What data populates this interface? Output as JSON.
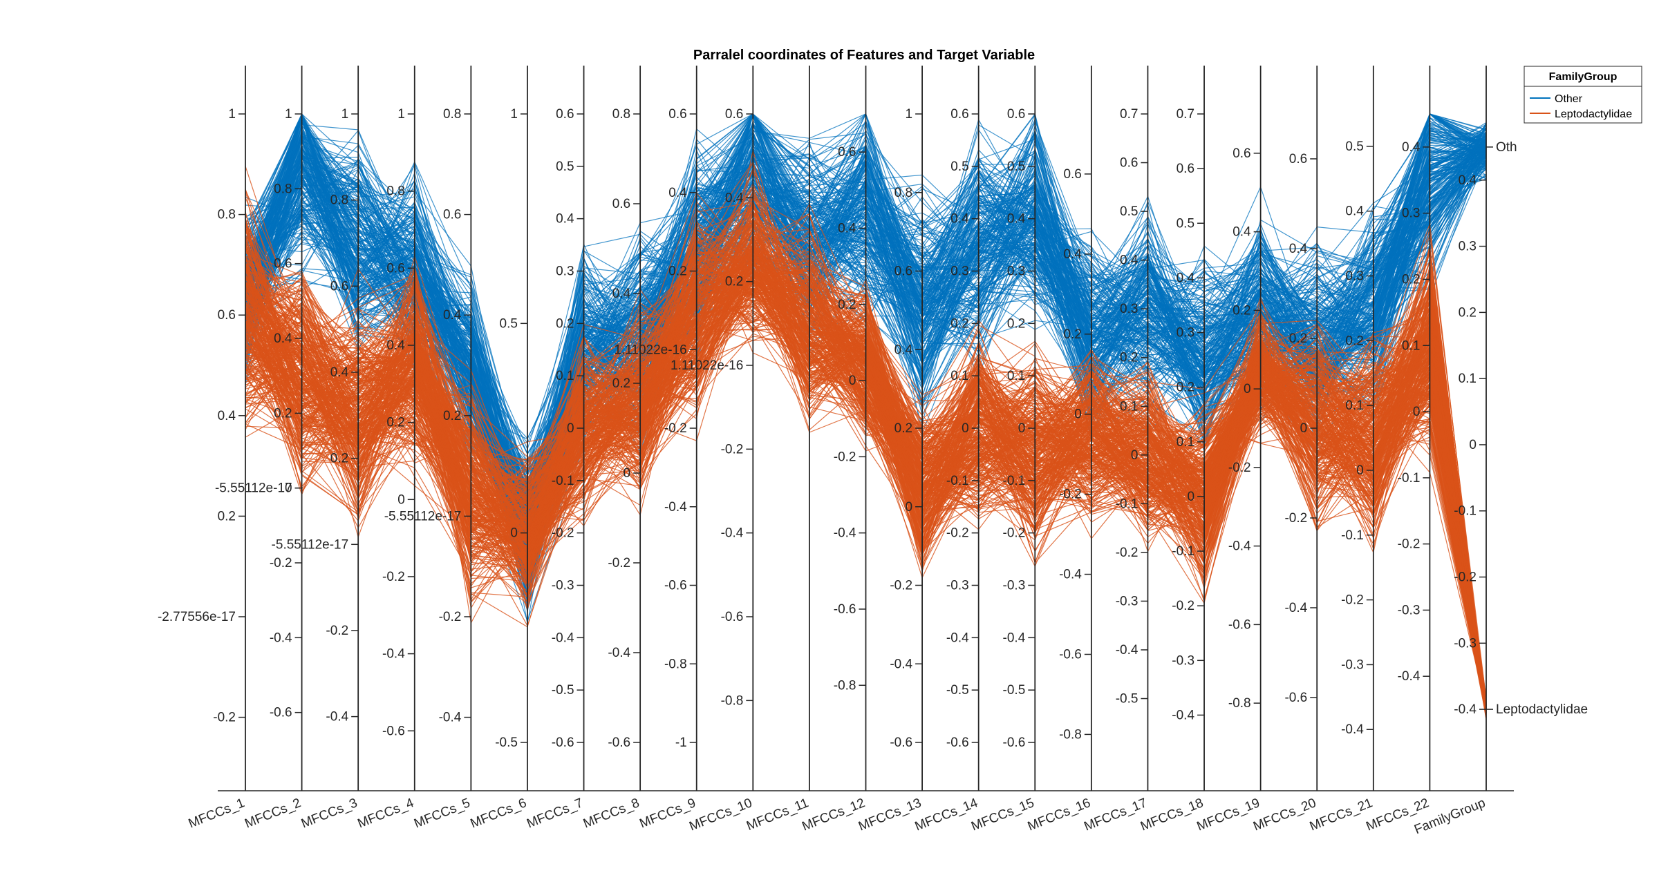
{
  "chart_data": {
    "type": "parallel-coordinates",
    "title": "Parralel coordinates of Features and Target Variable",
    "legend": {
      "title": "FamilyGroup",
      "position": "top-right",
      "entries": [
        {
          "name": "Other",
          "color": "#0072BD"
        },
        {
          "name": "Leptodactylidae",
          "color": "#D95319"
        }
      ]
    },
    "axes": [
      {
        "name": "MFCCs_1",
        "min": -0.25,
        "max": 1.0,
        "ticks": [
          1,
          0.8,
          0.6,
          0.4,
          0.2,
          -2.77556e-17,
          -0.2
        ],
        "tick_labels": [
          "1",
          "0.8",
          "0.6",
          "0.4",
          "0.2",
          "-2.77556e-17",
          "-0.2"
        ]
      },
      {
        "name": "MFCCs_2",
        "min": -0.68,
        "max": 1.0,
        "ticks": [
          1,
          0.8,
          0.6,
          0.4,
          0.2,
          0,
          -5.55112e-17,
          -0.2,
          -0.4,
          -0.6
        ],
        "tick_labels": [
          "1",
          "0.8",
          "0.6",
          "0.4",
          "0.2",
          "0",
          "-5.55112e-17",
          "-0.2",
          "-0.4",
          "-0.6"
        ]
      },
      {
        "name": "MFCCs_3",
        "min": -0.46,
        "max": 1.0,
        "ticks": [
          1,
          0.8,
          0.6,
          0.4,
          0.2,
          -5.55112e-17,
          -0.2,
          -0.4
        ],
        "tick_labels": [
          "1",
          "0.8",
          "0.6",
          "0.4",
          "0.2",
          "-5.55112e-17",
          "-0.2",
          "-0.4"
        ]
      },
      {
        "name": "MFCCs_4",
        "min": -0.63,
        "max": 1.0,
        "ticks": [
          1,
          0.8,
          0.6,
          0.4,
          0.2,
          0,
          -0.2,
          -0.4,
          -0.6
        ],
        "tick_labels": [
          "1",
          "0.8",
          "0.6",
          "0.4",
          "0.2",
          "0",
          "-0.2",
          "-0.4",
          "-0.6"
        ]
      },
      {
        "name": "MFCCs_5",
        "min": -0.45,
        "max": 0.8,
        "ticks": [
          0.8,
          0.6,
          0.4,
          0.2,
          -5.55112e-17,
          -0.2,
          -0.4
        ],
        "tick_labels": [
          "0.8",
          "0.6",
          "0.4",
          "0.2",
          "-5.55112e-17",
          "-0.2",
          "-0.4"
        ]
      },
      {
        "name": "MFCCs_6",
        "min": -0.5,
        "max": 1.0,
        "ticks": [
          1,
          0.5,
          0,
          -0.5
        ],
        "tick_labels": [
          "1",
          "0.5",
          "0",
          "-0.5"
        ]
      },
      {
        "name": "MFCCs_7",
        "min": -0.6,
        "max": 0.6,
        "ticks": [
          0.6,
          0.5,
          0.4,
          0.3,
          0.2,
          0.1,
          0,
          -0.1,
          -0.2,
          -0.3,
          -0.4,
          -0.5,
          -0.6
        ],
        "tick_labels": [
          "0.6",
          "0.5",
          "0.4",
          "0.3",
          "0.2",
          "0.1",
          "0",
          "-0.1",
          "-0.2",
          "-0.3",
          "-0.4",
          "-0.5",
          "-0.6"
        ]
      },
      {
        "name": "MFCCs_8",
        "min": -0.6,
        "max": 0.8,
        "ticks": [
          0.8,
          0.6,
          0.4,
          0.2,
          0,
          -0.2,
          -0.4,
          -0.6
        ],
        "tick_labels": [
          "0.8",
          "0.6",
          "0.4",
          "0.2",
          "0",
          "-0.2",
          "-0.4",
          "-0.6"
        ]
      },
      {
        "name": "MFCCs_9",
        "min": -1.0,
        "max": 0.6,
        "ticks": [
          0.6,
          0.4,
          0.2,
          1.11022e-16,
          -0.2,
          -0.4,
          -0.6,
          -0.8,
          -1
        ],
        "tick_labels": [
          "0.6",
          "0.4",
          "0.2",
          "1.11022e-16",
          "-0.2",
          "-0.4",
          "-0.6",
          "-0.8",
          "-1"
        ]
      },
      {
        "name": "MFCCs_10",
        "min": -0.9,
        "max": 0.6,
        "ticks": [
          0.6,
          0.4,
          0.2,
          1.11022e-16,
          -0.2,
          -0.4,
          -0.6,
          -0.8
        ],
        "tick_labels": [
          "0.6",
          "0.4",
          "0.2",
          "1.11022e-16",
          "-0.2",
          "-0.4",
          "-0.6",
          "-0.8"
        ]
      },
      {
        "name": "MFCCs_11",
        "min": -0.9,
        "max": 0.6,
        "ticks": [],
        "tick_labels": []
      },
      {
        "name": "MFCCs_12",
        "min": -0.95,
        "max": 0.7,
        "ticks": [
          0.6,
          0.4,
          0.2,
          0,
          -0.2,
          -0.4,
          -0.6,
          -0.8
        ],
        "tick_labels": [
          "0.6",
          "0.4",
          "0.2",
          "0",
          "-0.2",
          "-0.4",
          "-0.6",
          "-0.8"
        ]
      },
      {
        "name": "MFCCs_13",
        "min": -0.6,
        "max": 1.0,
        "ticks": [
          1,
          0.8,
          0.6,
          0.4,
          0.2,
          0,
          -0.2,
          -0.4,
          -0.6
        ],
        "tick_labels": [
          "1",
          "0.8",
          "0.6",
          "0.4",
          "0.2",
          "0",
          "-0.2",
          "-0.4",
          "-0.6"
        ]
      },
      {
        "name": "MFCCs_14",
        "min": -0.6,
        "max": 0.6,
        "ticks": [
          0.6,
          0.5,
          0.4,
          0.3,
          0.2,
          0.1,
          0,
          -0.1,
          -0.2,
          -0.3,
          -0.4,
          -0.5,
          -0.6
        ],
        "tick_labels": [
          "0.6",
          "0.5",
          "0.4",
          "0.3",
          "0.2",
          "0.1",
          "0",
          "-0.1",
          "-0.2",
          "-0.3",
          "-0.4",
          "-0.5",
          "-0.6"
        ]
      },
      {
        "name": "MFCCs_15",
        "min": -0.6,
        "max": 0.6,
        "ticks": [
          0.6,
          0.5,
          0.4,
          0.3,
          0.2,
          0.1,
          0,
          -0.1,
          -0.2,
          -0.3,
          -0.4,
          -0.5,
          -0.6
        ],
        "tick_labels": [
          "0.6",
          "0.5",
          "0.4",
          "0.3",
          "0.2",
          "0.1",
          "0",
          "-0.1",
          "-0.2",
          "-0.3",
          "-0.4",
          "-0.5",
          "-0.6"
        ]
      },
      {
        "name": "MFCCs_16",
        "min": -0.82,
        "max": 0.75,
        "ticks": [
          0.6,
          0.4,
          0.2,
          0,
          -0.2,
          -0.4,
          -0.6,
          -0.8
        ],
        "tick_labels": [
          "0.6",
          "0.4",
          "0.2",
          "0",
          "-0.2",
          "-0.4",
          "-0.6",
          "-0.8"
        ]
      },
      {
        "name": "MFCCs_17",
        "min": -0.59,
        "max": 0.7,
        "ticks": [
          0.7,
          0.6,
          0.5,
          0.4,
          0.3,
          0.2,
          0.1,
          0,
          -0.1,
          -0.2,
          -0.3,
          -0.4,
          -0.5
        ],
        "tick_labels": [
          "0.7",
          "0.6",
          "0.5",
          "0.4",
          "0.3",
          "0.2",
          "0.1",
          "0",
          "-0.1",
          "-0.2",
          "-0.3",
          "-0.4",
          "-0.5"
        ]
      },
      {
        "name": "MFCCs_18",
        "min": -0.45,
        "max": 0.7,
        "ticks": [
          0.7,
          0.6,
          0.5,
          0.4,
          0.3,
          0.2,
          0.1,
          0,
          -0.1,
          -0.2,
          -0.3,
          -0.4
        ],
        "tick_labels": [
          "0.7",
          "0.6",
          "0.5",
          "0.4",
          "0.3",
          "0.2",
          "0.1",
          "0",
          "-0.1",
          "-0.2",
          "-0.3",
          "-0.4"
        ]
      },
      {
        "name": "MFCCs_19",
        "min": -0.9,
        "max": 0.7,
        "ticks": [
          0.6,
          0.4,
          0.2,
          0,
          -0.2,
          -0.4,
          -0.6,
          -0.8
        ],
        "tick_labels": [
          "0.6",
          "0.4",
          "0.2",
          "0",
          "-0.2",
          "-0.4",
          "-0.6",
          "-0.8"
        ]
      },
      {
        "name": "MFCCs_20",
        "min": -0.7,
        "max": 0.7,
        "ticks": [
          0.6,
          0.4,
          0.2,
          0,
          -0.2,
          -0.4,
          -0.6
        ],
        "tick_labels": [
          "0.6",
          "0.4",
          "0.2",
          "0",
          "-0.2",
          "-0.4",
          "-0.6"
        ]
      },
      {
        "name": "MFCCs_21",
        "min": -0.42,
        "max": 0.55,
        "ticks": [
          0.5,
          0.4,
          0.3,
          0.2,
          0.1,
          0,
          -0.1,
          -0.2,
          -0.3,
          -0.4
        ],
        "tick_labels": [
          "0.5",
          "0.4",
          "0.3",
          "0.2",
          "0.1",
          "0",
          "-0.1",
          "-0.2",
          "-0.3",
          "-0.4"
        ]
      },
      {
        "name": "MFCCs_22",
        "min": -0.5,
        "max": 0.45,
        "ticks": [
          0.4,
          0.3,
          0.2,
          0.1,
          0,
          -0.1,
          -0.2,
          -0.3,
          -0.4
        ],
        "tick_labels": [
          "0.4",
          "0.3",
          "0.2",
          "0.1",
          "0",
          "-0.1",
          "-0.2",
          "-0.3",
          "-0.4"
        ]
      },
      {
        "name": "FamilyGroup",
        "min": -0.45,
        "max": 0.5,
        "ticks": [
          0.4,
          0.3,
          0.2,
          0.1,
          0,
          -0.1,
          -0.2,
          -0.3,
          -0.4
        ],
        "tick_labels": [
          "0.4",
          "0.3",
          "0.2",
          "0.1",
          "0",
          "-0.1",
          "-0.2",
          "-0.3",
          "-0.4"
        ]
      }
    ],
    "right_axis": {
      "ticks": [
        0.45,
        -0.4
      ],
      "tick_labels": [
        "Oth",
        "Leptodactylidae"
      ]
    },
    "series": [
      {
        "name": "Other",
        "color": "#0072BD",
        "values": [
          0.65,
          0.85,
          0.7,
          0.6,
          0.3,
          0.0,
          0.15,
          0.3,
          0.25,
          0.45,
          0.3,
          0.45,
          0.5,
          0.35,
          0.4,
          0.2,
          0.3,
          0.25,
          0.2,
          0.2,
          0.25,
          0.35,
          0.45
        ],
        "spread": [
          0.45,
          0.75,
          0.7,
          0.7,
          0.5,
          0.55,
          0.5,
          0.6,
          0.7,
          0.7,
          0.7,
          0.75,
          0.8,
          0.55,
          0.55,
          0.65,
          0.55,
          0.5,
          0.65,
          0.6,
          0.4,
          0.45,
          0.12
        ]
      },
      {
        "name": "Leptodactylidae",
        "color": "#D95319",
        "values": [
          0.6,
          0.3,
          0.3,
          0.35,
          0.05,
          0.0,
          0.0,
          0.15,
          0.1,
          0.25,
          0.1,
          0.05,
          0.05,
          0.0,
          -0.05,
          -0.05,
          0.0,
          0.0,
          0.05,
          0.0,
          0.05,
          0.1,
          -0.4
        ],
        "spread": [
          0.6,
          0.8,
          0.7,
          0.7,
          0.55,
          0.5,
          0.45,
          0.55,
          0.7,
          0.55,
          0.65,
          0.55,
          0.6,
          0.5,
          0.5,
          0.55,
          0.45,
          0.45,
          0.45,
          0.55,
          0.4,
          0.45,
          0.04
        ]
      }
    ]
  }
}
